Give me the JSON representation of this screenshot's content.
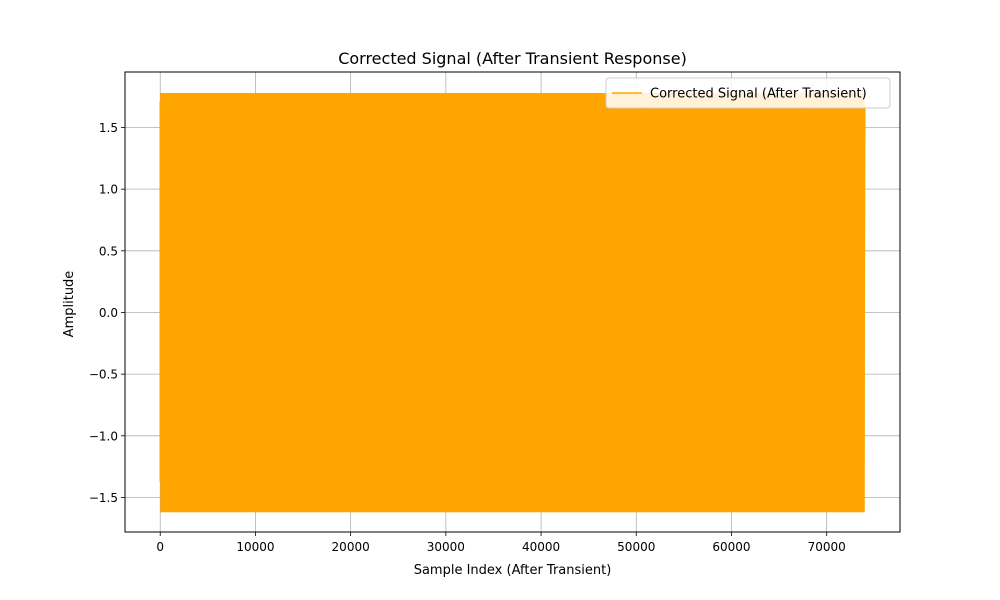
{
  "chart_data": {
    "type": "line",
    "title": "Corrected Signal (After Transient Response)",
    "xlabel": "Sample Index (After Transient)",
    "ylabel": "Amplitude",
    "xlim": [
      -3700,
      77700
    ],
    "ylim": [
      -1.78,
      1.95
    ],
    "x_ticks": [
      0,
      10000,
      20000,
      30000,
      40000,
      50000,
      60000,
      70000
    ],
    "y_ticks": [
      -1.5,
      -1.0,
      -0.5,
      0.0,
      0.5,
      1.0,
      1.5
    ],
    "grid": true,
    "legend_position": "top-right",
    "series": [
      {
        "name": "Corrected Signal (After Transient)",
        "color": "#ffa500",
        "x_start": 0,
        "x_end": 74000,
        "y_max": 1.78,
        "y_min": -1.62,
        "y_start": -1.37,
        "y_end": 1.44
      }
    ]
  }
}
